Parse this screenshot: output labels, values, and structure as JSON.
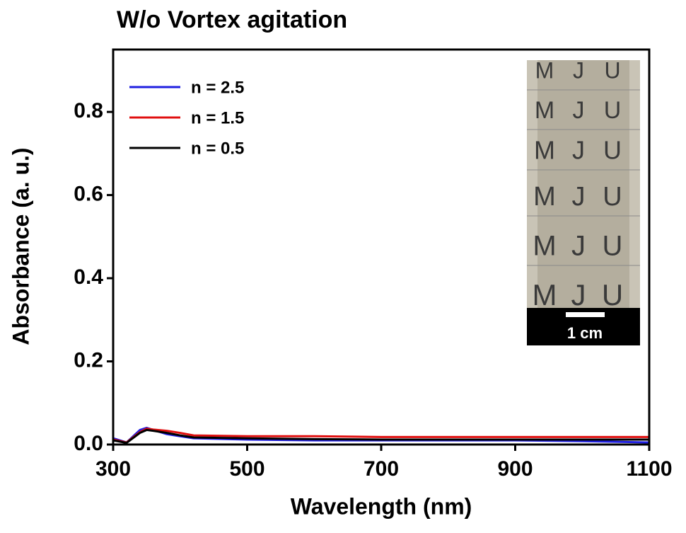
{
  "chart_data": {
    "type": "line",
    "title": "W/o Vortex agitation",
    "x_label": "Wavelength (nm)",
    "y_label": "Absorbance (a. u.)",
    "x": [
      300,
      320,
      340,
      350,
      360,
      380,
      400,
      420,
      500,
      600,
      700,
      800,
      900,
      1000,
      1100
    ],
    "series": [
      {
        "name": "n = 2.5",
        "color": "#1f1fe0",
        "values": [
          0.015,
          0.005,
          0.035,
          0.04,
          0.035,
          0.025,
          0.02,
          0.015,
          0.012,
          0.01,
          0.01,
          0.01,
          0.01,
          0.008,
          0.005
        ]
      },
      {
        "name": "n = 1.5",
        "color": "#e01010",
        "values": [
          0.012,
          0.005,
          0.03,
          0.038,
          0.036,
          0.033,
          0.028,
          0.022,
          0.02,
          0.02,
          0.018,
          0.018,
          0.018,
          0.018,
          0.018
        ]
      },
      {
        "name": "n = 0.5",
        "color": "#000000",
        "values": [
          0.01,
          0.004,
          0.028,
          0.035,
          0.033,
          0.028,
          0.022,
          0.017,
          0.015,
          0.013,
          0.012,
          0.012,
          0.012,
          0.012,
          0.012
        ]
      }
    ],
    "xlim": [
      300,
      1100
    ],
    "xticks": [
      300,
      500,
      700,
      900,
      1100
    ],
    "ylim": [
      0,
      0.95
    ],
    "yticks": [
      {
        "value": 0,
        "label": "0.0"
      },
      0.2,
      0.4,
      0.6,
      0.8
    ],
    "legend": "upper left",
    "inset": {
      "letters": [
        "M",
        "J",
        "U"
      ],
      "scale_label": "1 cm"
    }
  }
}
